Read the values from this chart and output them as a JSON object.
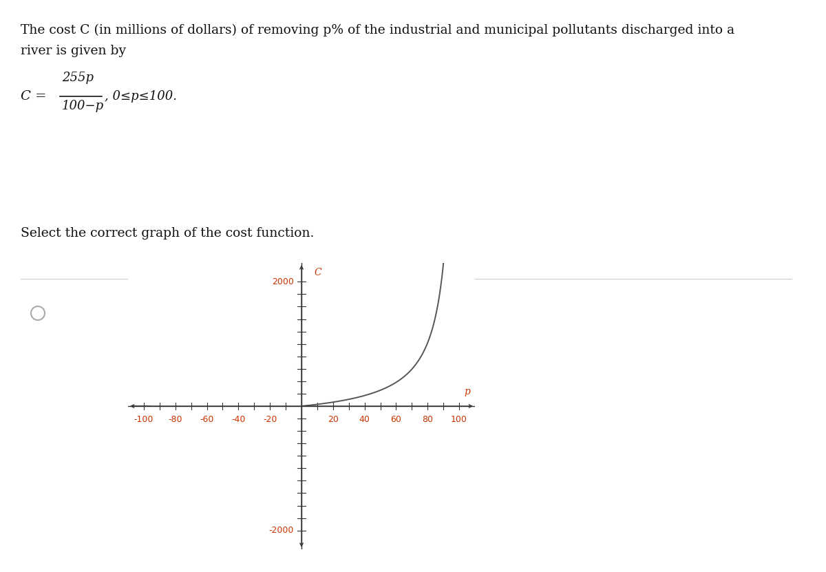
{
  "title_line1": "The cost C (in millions of dollars) of removing p% of the industrial and municipal pollutants discharged into a",
  "title_line2": "river is given by",
  "select_text": "Select the correct graph of the cost function.",
  "xmin": -110,
  "xmax": 110,
  "ymin": -2300,
  "ymax": 2300,
  "xticks": [
    -100,
    -80,
    -60,
    -40,
    -20,
    20,
    40,
    60,
    80,
    100
  ],
  "axis_color": "#333333",
  "curve_color": "#555555",
  "label_color": "#cc3300",
  "background_color": "#ffffff",
  "curve_linewidth": 1.4,
  "axis_linewidth": 1.0,
  "separator_color": "#cccccc",
  "circle_color": "#aaaaaa",
  "text_color": "#111111",
  "title_fontsize": 13.5,
  "formula_fontsize": 14,
  "select_fontsize": 13.5,
  "graph_label_fontsize": 9,
  "axis_label_fontsize": 10
}
